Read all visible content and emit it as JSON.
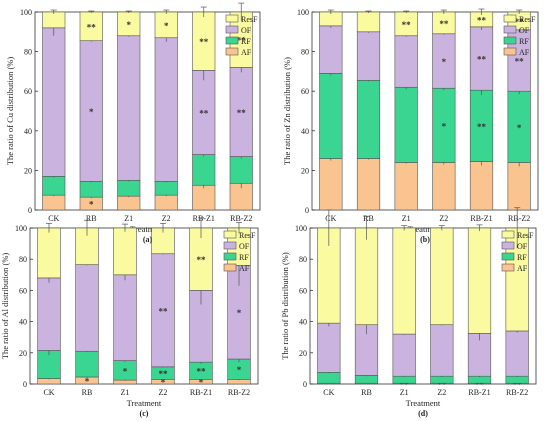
{
  "colors": {
    "AF": "#f9c48f",
    "RF": "#39d591",
    "OF": "#cbb3e0",
    "ResF": "#fafaa0"
  },
  "chart_data": [
    {
      "type": "bar",
      "stacked": true,
      "panel_label": "(a)",
      "xlabel": "Treatment",
      "ylabel": "The ratio of Cu distribution (%)",
      "ylim": [
        0,
        100
      ],
      "yticks": [
        0,
        20,
        40,
        60,
        80,
        100
      ],
      "legend_position": "top-right",
      "categories": [
        "CK",
        "RB",
        "Z1",
        "Z2",
        "RB-Z1",
        "RB-Z2"
      ],
      "series": [
        {
          "name": "AF",
          "values": [
            7.5,
            6.5,
            7.0,
            7.5,
            12.5,
            13.5
          ],
          "errors": [
            0.5,
            0.5,
            0.5,
            0.5,
            1.5,
            2.5
          ],
          "marks": [
            "",
            "*",
            "",
            "",
            "",
            ""
          ]
        },
        {
          "name": "RF",
          "values": [
            9.5,
            8.0,
            8.0,
            7.0,
            15.5,
            13.5
          ],
          "errors": [
            0.5,
            0.5,
            0.5,
            0.5,
            1.0,
            1.0
          ],
          "marks": [
            "",
            "",
            "",
            "",
            "",
            ""
          ]
        },
        {
          "name": "OF",
          "values": [
            75.0,
            71.0,
            73.0,
            72.5,
            42.5,
            45.0
          ],
          "errors": [
            4.0,
            0.5,
            0.5,
            2.0,
            5.0,
            2.5
          ],
          "marks": [
            "",
            "*",
            "",
            "",
            "**",
            "**"
          ]
        },
        {
          "name": "ResF",
          "values": [
            8.0,
            14.5,
            12.0,
            13.0,
            29.5,
            28.0
          ],
          "errors": [
            1.0,
            0.5,
            0.5,
            1.0,
            2.5,
            4.5
          ],
          "marks": [
            "",
            "**",
            "*",
            "*",
            "**",
            "**"
          ]
        }
      ]
    },
    {
      "type": "bar",
      "stacked": true,
      "panel_label": "(b)",
      "xlabel": "Treatment",
      "ylabel": "The ratio of Zn distribution (%)",
      "ylim": [
        0,
        100
      ],
      "yticks": [
        0,
        20,
        40,
        60,
        80,
        100
      ],
      "legend_position": "top-right",
      "categories": [
        "CK",
        "RB",
        "Z1",
        "Z2",
        "RB-Z1",
        "RB-Z2"
      ],
      "series": [
        {
          "name": "AF",
          "values": [
            26.0,
            26.0,
            24.0,
            24.0,
            24.5,
            24.0
          ],
          "errors": [
            1.0,
            0.5,
            0.5,
            1.0,
            2.0,
            2.0
          ],
          "marks": [
            "",
            "",
            "",
            "",
            "",
            ""
          ]
        },
        {
          "name": "RF",
          "values": [
            43.0,
            39.5,
            38.0,
            37.5,
            36.0,
            36.0
          ],
          "errors": [
            1.0,
            0.5,
            1.0,
            1.0,
            2.5,
            1.5
          ],
          "marks": [
            "",
            "",
            "",
            "*",
            "**",
            "*"
          ]
        },
        {
          "name": "OF",
          "values": [
            24.0,
            24.5,
            26.0,
            27.5,
            32.0,
            31.0
          ],
          "errors": [
            1.0,
            0.5,
            0.5,
            0.5,
            1.5,
            1.5
          ],
          "marks": [
            "",
            "",
            "",
            "*",
            "**",
            "**"
          ]
        },
        {
          "name": "ResF",
          "values": [
            7.0,
            10.0,
            12.0,
            11.0,
            7.5,
            9.0
          ],
          "errors": [
            1.0,
            0.5,
            0.5,
            1.0,
            1.5,
            1.0
          ],
          "marks": [
            "",
            "",
            "**",
            "**",
            "**",
            "**"
          ]
        }
      ]
    },
    {
      "type": "bar",
      "stacked": true,
      "panel_label": "(c)",
      "xlabel": "Treatment",
      "ylabel": "The ratio of Al distribution (%)",
      "ylim": [
        0,
        100
      ],
      "yticks": [
        0,
        20,
        40,
        60,
        80,
        100
      ],
      "legend_position": "top-right",
      "categories": [
        "CK",
        "RB",
        "Z1",
        "Z2",
        "RB-Z1",
        "RB-Z2"
      ],
      "series": [
        {
          "name": "AF",
          "values": [
            3.5,
            4.5,
            2.5,
            3.0,
            3.0,
            3.0
          ],
          "errors": [
            0.5,
            1.5,
            0.5,
            0.5,
            0.5,
            0.5
          ],
          "marks": [
            "",
            "*",
            "",
            "*",
            "*",
            ""
          ]
        },
        {
          "name": "RF",
          "values": [
            18.0,
            16.5,
            12.5,
            8.0,
            11.0,
            13.0
          ],
          "errors": [
            3.0,
            0.5,
            1.0,
            0.5,
            1.0,
            2.0
          ],
          "marks": [
            "",
            "",
            "*",
            "**",
            "**",
            "*"
          ]
        },
        {
          "name": "OF",
          "values": [
            46.5,
            55.5,
            55.0,
            72.5,
            46.0,
            60.0
          ],
          "errors": [
            3.0,
            0.5,
            3.5,
            0.5,
            9.0,
            13.0
          ],
          "marks": [
            "",
            "",
            "",
            "**",
            "",
            "*"
          ]
        },
        {
          "name": "ResF",
          "values": [
            32.0,
            23.5,
            30.0,
            16.5,
            40.0,
            24.0
          ],
          "errors": [
            3.0,
            5.0,
            2.5,
            3.0,
            6.5,
            3.5
          ],
          "marks": [
            "",
            "",
            "",
            "",
            "**",
            ""
          ]
        }
      ]
    },
    {
      "type": "bar",
      "stacked": true,
      "panel_label": "(d)",
      "xlabel": "Treatment",
      "ylabel": "The ratio of Pb distribution (%)",
      "ylim": [
        0,
        100
      ],
      "yticks": [
        0,
        20,
        40,
        60,
        80,
        100
      ],
      "legend_position": "top-right",
      "categories": [
        "CK",
        "RB",
        "Z1",
        "Z2",
        "RB-Z1",
        "RB-Z2"
      ],
      "series": [
        {
          "name": "AF",
          "values": [
            0.5,
            0.5,
            0.5,
            0.5,
            0.5,
            0.5
          ],
          "errors": [
            0.2,
            0.2,
            0.2,
            0.2,
            0.2,
            0.2
          ],
          "marks": [
            "",
            "",
            "**",
            "**",
            "**",
            "**"
          ]
        },
        {
          "name": "RF",
          "values": [
            7.0,
            5.0,
            4.5,
            4.5,
            4.5,
            4.5
          ],
          "errors": [
            0.5,
            0.5,
            0.5,
            0.5,
            0.5,
            0.5
          ],
          "marks": [
            "",
            "",
            "",
            "",
            "",
            ""
          ]
        },
        {
          "name": "OF",
          "values": [
            31.5,
            32.5,
            27.0,
            33.0,
            27.5,
            29.0
          ],
          "errors": [
            2.0,
            6.0,
            0.5,
            0.5,
            4.5,
            1.0
          ],
          "marks": [
            "",
            "",
            "",
            "",
            "",
            ""
          ]
        },
        {
          "name": "ResF",
          "values": [
            61.0,
            62.0,
            68.0,
            62.0,
            67.5,
            66.0
          ],
          "errors": [
            11.5,
            7.5,
            1.5,
            1.5,
            2.0,
            13.0
          ],
          "marks": [
            "",
            "",
            "",
            "",
            "",
            ""
          ]
        }
      ]
    }
  ]
}
